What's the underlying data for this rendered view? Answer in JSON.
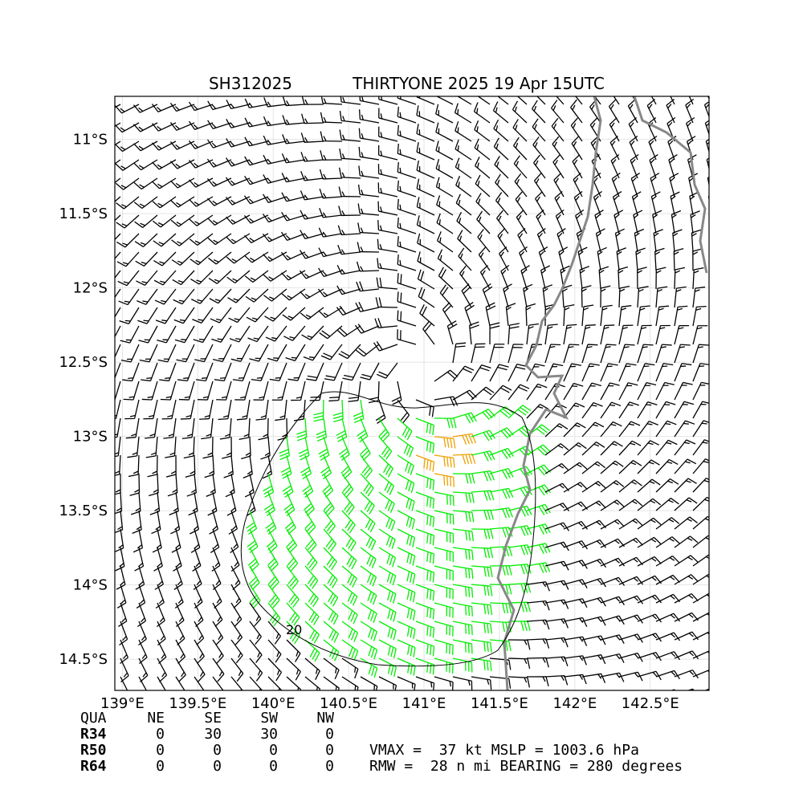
{
  "chart_data": {
    "type": "wind-barbs",
    "title_left": "SH312025",
    "title_right": "THIRTYONE 2025 19 Apr 15UTC",
    "xlim": [
      138.95,
      142.89
    ],
    "ylim": [
      -14.71,
      -10.71
    ],
    "xticks": [
      {
        "value": 139,
        "label": "139°E"
      },
      {
        "value": 139.5,
        "label": "139.5°E"
      },
      {
        "value": 140,
        "label": "140°E"
      },
      {
        "value": 140.5,
        "label": "140.5°E"
      },
      {
        "value": 141,
        "label": "141°E"
      },
      {
        "value": 141.5,
        "label": "141.5°E"
      },
      {
        "value": 142,
        "label": "142°E"
      },
      {
        "value": 142.5,
        "label": "142.5°E"
      }
    ],
    "yticks": [
      {
        "value": -11,
        "label": "11°S"
      },
      {
        "value": -11.5,
        "label": "11.5°S"
      },
      {
        "value": -12,
        "label": "12°S"
      },
      {
        "value": -12.5,
        "label": "12.5°S"
      },
      {
        "value": -13,
        "label": "13°S"
      },
      {
        "value": -13.5,
        "label": "13.5°S"
      },
      {
        "value": -14,
        "label": "14°S"
      },
      {
        "value": -14.5,
        "label": "14.5°S"
      }
    ],
    "grid": true,
    "contour_label": "20",
    "table": {
      "header": [
        "QUA",
        "NE",
        "SE",
        "SW",
        "NW"
      ],
      "rows": [
        [
          "R34",
          0,
          30,
          30,
          0
        ],
        [
          "R50",
          0,
          0,
          0,
          0
        ],
        [
          "R64",
          0,
          0,
          0,
          0
        ]
      ]
    },
    "annotations": [
      "VMAX =  37 kt MSLP = 1003.6 hPa",
      "RMW =  28 n mi BEARING = 280 degrees"
    ]
  }
}
